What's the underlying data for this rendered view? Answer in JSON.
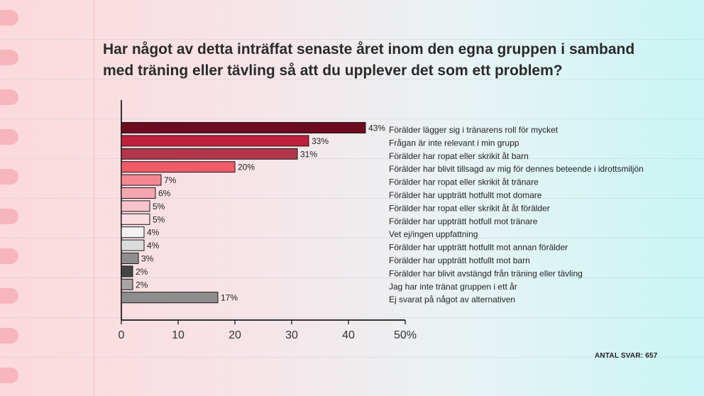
{
  "title_line1": "Har något av detta inträffat senaste året inom den egna gruppen i samband",
  "title_line2": "med träning eller tävling så att du upplever det som ett problem?",
  "footnote": "ANTAL SVAR: 657",
  "chart_data": {
    "type": "bar",
    "orientation": "horizontal",
    "title": "Har något av detta inträffat senaste året inom den egna gruppen i samband med träning eller tävling så att du upplever det som ett problem?",
    "xlim": [
      0,
      50
    ],
    "x_ticks": [
      "0",
      "10",
      "20",
      "30",
      "40",
      "50%"
    ],
    "grid": false,
    "categories": [
      "Förälder lägger sig i tränarens roll för mycket",
      "Frågan är inte relevant i min grupp",
      "Förälder har ropat eller skrikit åt barn",
      "Förälder har blivit tillsagd av mig för dennes beteende i idrottsmiljön",
      "Förälder har ropat eller skrikit åt tränare",
      "Förälder har uppträtt hotfullt mot domare",
      "Förälder har ropat eller skrikit åt åt förälder",
      "Förälder har uppträtt hotfull mot tränare",
      "Vet ej/ingen uppfattning",
      "Förälder har uppträtt hotfullt mot annan förälder",
      "Förälder har uppträtt hotfullt mot barn",
      "Förälder har blivit avstängd från träning eller tävling",
      "Jag har inte tränat gruppen i ett år",
      "Ej svarat på något av alternativen"
    ],
    "values": [
      43,
      33,
      31,
      20,
      7,
      6,
      5,
      5,
      4,
      4,
      3,
      2,
      2,
      17
    ],
    "value_labels": [
      "43%",
      "33%",
      "31%",
      "20%",
      "7%",
      "6%",
      "5%",
      "5%",
      "4%",
      "4%",
      "3%",
      "2%",
      "2%",
      "17%"
    ],
    "colors": [
      "#6e0b20",
      "#c0203a",
      "#b3364d",
      "#ef5b67",
      "#f58792",
      "#f5a6b0",
      "#f7c3ca",
      "#f8dde1",
      "#f2f2f2",
      "#dcdcdc",
      "#8e8e8e",
      "#454545",
      "#a4a4a4",
      "#8e8e8e"
    ]
  }
}
